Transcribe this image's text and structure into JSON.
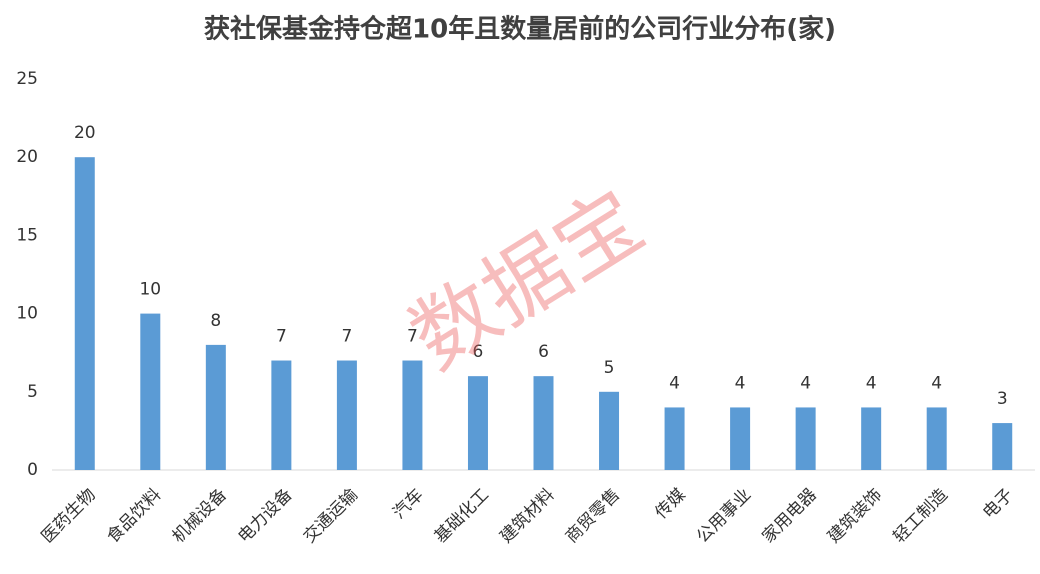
{
  "chart_data": {
    "type": "bar",
    "title": "获社保基金持仓超10年且数量居前的公司行业分布(家)",
    "categories": [
      "医药生物",
      "食品饮料",
      "机械设备",
      "电力设备",
      "交通运输",
      "汽车",
      "基础化工",
      "建筑材料",
      "商贸零售",
      "传媒",
      "公用事业",
      "家用电器",
      "建筑装饰",
      "轻工制造",
      "电子"
    ],
    "values": [
      20,
      10,
      8,
      7,
      7,
      7,
      6,
      6,
      5,
      4,
      4,
      4,
      4,
      4,
      3
    ],
    "color": "#5b9bd5",
    "ylim": [
      0,
      25
    ],
    "yticks": [
      0,
      5,
      10,
      15,
      20,
      25
    ],
    "grid": false,
    "watermark": "数据宝"
  }
}
